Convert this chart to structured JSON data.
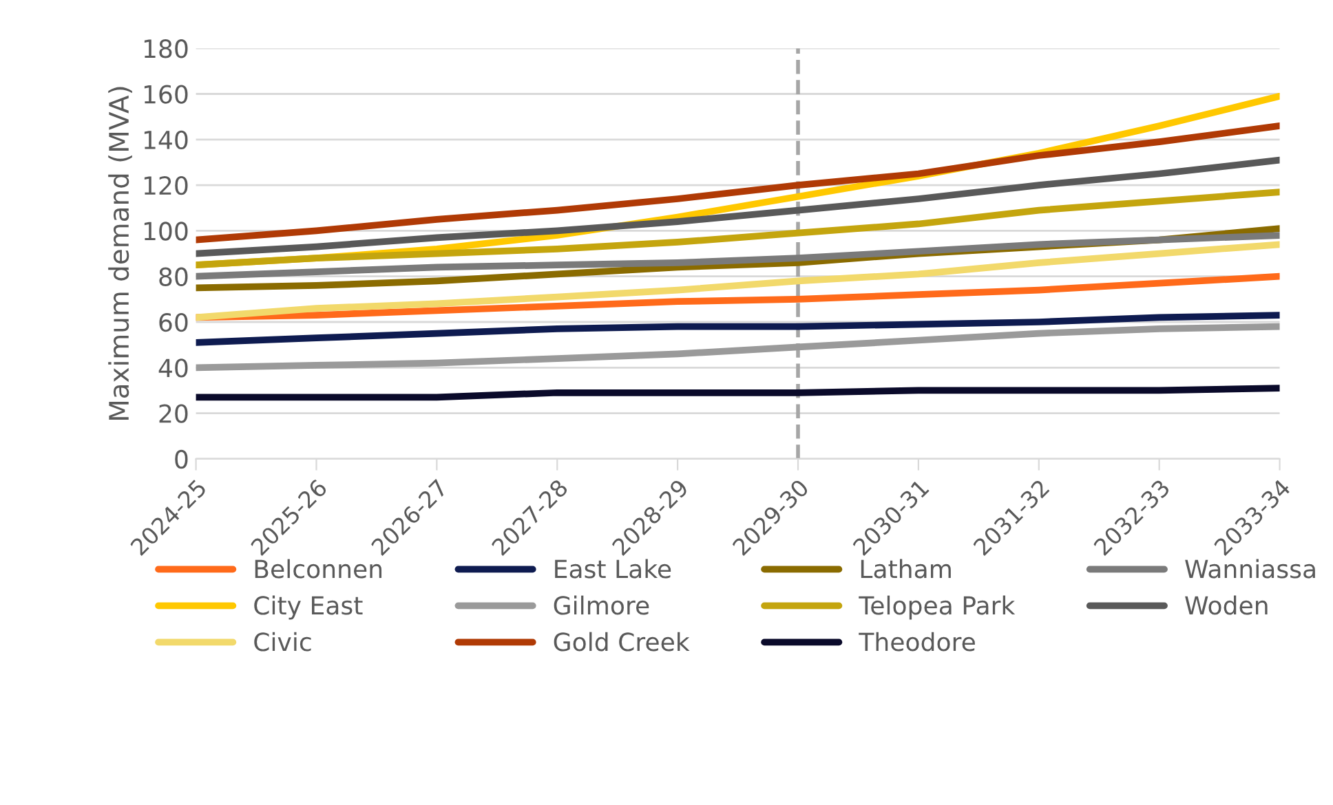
{
  "chart_data": {
    "type": "line",
    "ylabel": "Maximum demand (MVA)",
    "categories": [
      "2024-25",
      "2025-26",
      "2026-27",
      "2027-28",
      "2028-29",
      "2029-30",
      "2030-31",
      "2031-32",
      "2032-33",
      "2033-34"
    ],
    "series": [
      {
        "name": "Belconnen",
        "color": "#ff6a1a",
        "values": [
          62,
          63,
          65,
          67,
          69,
          70,
          72,
          74,
          77,
          80
        ]
      },
      {
        "name": "City East",
        "color": "#ffc800",
        "values": [
          85,
          88,
          92,
          98,
          106,
          115,
          124,
          134,
          146,
          159
        ]
      },
      {
        "name": "Civic",
        "color": "#f2d96b",
        "values": [
          62,
          66,
          68,
          71,
          74,
          78,
          81,
          86,
          90,
          94
        ]
      },
      {
        "name": "East Lake",
        "color": "#0e1b50",
        "values": [
          51,
          53,
          55,
          57,
          58,
          58,
          59,
          60,
          62,
          63
        ]
      },
      {
        "name": "Gilmore",
        "color": "#9a9a9a",
        "values": [
          40,
          41,
          42,
          44,
          46,
          49,
          52,
          55,
          57,
          58
        ]
      },
      {
        "name": "Gold Creek",
        "color": "#b03a05",
        "values": [
          96,
          100,
          105,
          109,
          114,
          120,
          125,
          133,
          139,
          146
        ]
      },
      {
        "name": "Latham",
        "color": "#8a6b00",
        "values": [
          75,
          76,
          78,
          81,
          84,
          86,
          90,
          93,
          96,
          101
        ]
      },
      {
        "name": "Telopea Park",
        "color": "#c4a50e",
        "values": [
          85,
          88,
          90,
          92,
          95,
          99,
          103,
          109,
          113,
          117
        ]
      },
      {
        "name": "Theodore",
        "color": "#0a0a2a",
        "values": [
          27,
          27,
          27,
          29,
          29,
          29,
          30,
          30,
          30,
          31
        ]
      },
      {
        "name": "Wanniassa",
        "color": "#7a7a7a",
        "values": [
          80,
          82,
          84,
          85,
          86,
          88,
          91,
          94,
          96,
          98
        ]
      },
      {
        "name": "Woden",
        "color": "#595959",
        "values": [
          90,
          93,
          97,
          100,
          104,
          109,
          114,
          120,
          125,
          131
        ]
      }
    ],
    "ylim": [
      0,
      180
    ],
    "yticks": [
      0,
      20,
      40,
      60,
      80,
      100,
      120,
      140,
      160,
      180
    ],
    "ref_lines": [
      {
        "axis": "x",
        "value": "2029-30",
        "color": "#a6a6a6",
        "line_style": "dashed"
      }
    ],
    "grid": "y",
    "legend": "bottom",
    "marker": "none",
    "line_style": "solid"
  }
}
